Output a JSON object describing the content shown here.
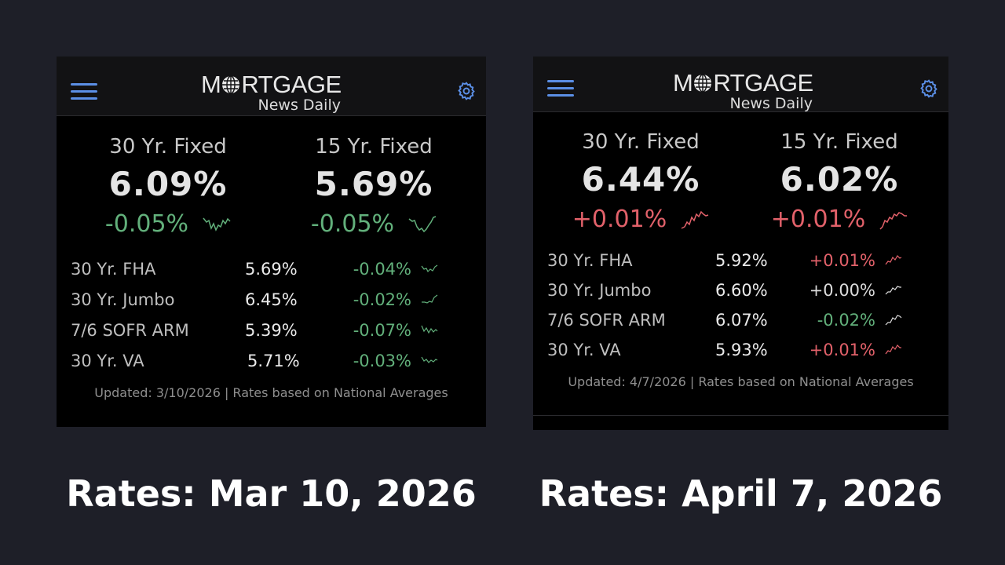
{
  "colors": {
    "background": "#1e1f28",
    "panel": "#000000",
    "up": "#e2616a",
    "down": "#62b07b",
    "accent": "#5b8fe6"
  },
  "icons": {
    "menu": "menu-icon",
    "settings": "gear-icon",
    "logo_globe": "globe-icon"
  },
  "logo": {
    "main_before": "M",
    "main_after": "RTGAGE",
    "sub": "News Daily"
  },
  "snapshots": [
    {
      "caption": "Rates: Mar 10, 2026",
      "headline": [
        {
          "label": "30 Yr. Fixed",
          "rate": "6.09%",
          "change": "-0.05%",
          "direction": "down"
        },
        {
          "label": "15 Yr. Fixed",
          "rate": "5.69%",
          "change": "-0.05%",
          "direction": "down"
        }
      ],
      "rows": [
        {
          "label": "30 Yr. FHA",
          "rate": "5.69%",
          "change": "-0.04%",
          "direction": "down"
        },
        {
          "label": "30 Yr. Jumbo",
          "rate": "6.45%",
          "change": "-0.02%",
          "direction": "down"
        },
        {
          "label": "7/6 SOFR ARM",
          "rate": "5.39%",
          "change": "-0.07%",
          "direction": "down"
        },
        {
          "label": "30 Yr. VA",
          "rate": "5.71%",
          "change": "-0.03%",
          "direction": "down"
        }
      ],
      "footer": "Updated: 3/10/2026 | Rates based on National Averages"
    },
    {
      "caption": "Rates: April 7, 2026",
      "headline": [
        {
          "label": "30 Yr. Fixed",
          "rate": "6.44%",
          "change": "+0.01%",
          "direction": "up"
        },
        {
          "label": "15 Yr. Fixed",
          "rate": "6.02%",
          "change": "+0.01%",
          "direction": "up"
        }
      ],
      "rows": [
        {
          "label": "30 Yr. FHA",
          "rate": "5.92%",
          "change": "+0.01%",
          "direction": "up"
        },
        {
          "label": "30 Yr. Jumbo",
          "rate": "6.60%",
          "change": "+0.00%",
          "direction": "flat"
        },
        {
          "label": "7/6 SOFR ARM",
          "rate": "6.07%",
          "change": "-0.02%",
          "direction": "down"
        },
        {
          "label": "30 Yr. VA",
          "rate": "5.93%",
          "change": "+0.01%",
          "direction": "up"
        }
      ],
      "footer": "Updated: 4/7/2026 | Rates based on National Averages"
    }
  ]
}
